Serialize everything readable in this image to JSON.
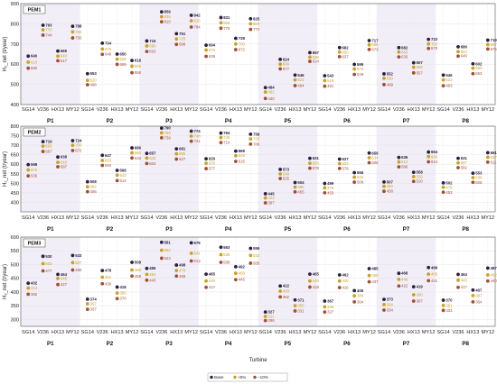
{
  "colors": {
    "base": "#2b2140",
    "plus5": "#c9a227",
    "minus10": "#a0503a",
    "band": "#f2eef8",
    "grid": "#e4e4e4"
  },
  "xlabel": "Turbine",
  "turbines": [
    "SG14",
    "V236",
    "HX13",
    "MY12"
  ],
  "sites": [
    "P1",
    "P2",
    "P3",
    "P4",
    "P5",
    "P6",
    "P7",
    "P8"
  ],
  "legend": [
    "Base",
    "+5%",
    "−10%"
  ],
  "chart_data": [
    {
      "type": "scatter",
      "title": "PEM1",
      "ylabel": "H₂_net (t/year)",
      "ylim": [
        400,
        900
      ],
      "yticks": [
        400,
        500,
        600,
        700,
        800,
        900
      ],
      "series_order": [
        "Base",
        "+5%",
        "−10%"
      ],
      "data": {
        "P1": [
          [
            640,
            610,
            580
          ],
          [
            793,
            770,
            744
          ],
          [
            665,
            640,
            617
          ],
          [
            788,
            760,
            730
          ]
        ],
        "P2": [
          [
            553,
            520,
            498
          ],
          [
            704,
            675,
            649
          ],
          [
            650,
            625,
            599
          ],
          [
            618,
            590,
            558
          ]
        ],
        "P3": [
          [
            715,
            690,
            663
          ],
          [
            859,
            835,
            810
          ],
          [
            751,
            725,
            698
          ],
          [
            842,
            815,
            784
          ]
        ],
        "P4": [
          [
            694,
            670,
            639
          ],
          [
            831,
            805,
            778
          ],
          [
            728,
            700,
            672
          ],
          [
            825,
            800,
            772
          ]
        ],
        "P5": [
          [
            484,
            462,
            430
          ],
          [
            624,
            600,
            577
          ],
          [
            546,
            522,
            494
          ],
          [
            657,
            635,
            614
          ]
        ],
        "P6": [
          [
            543,
            519,
            491
          ],
          [
            682,
            660,
            637
          ],
          [
            599,
            576,
            549
          ],
          [
            717,
            696,
            673
          ]
        ],
        "P7": [
          [
            552,
            530,
            499
          ],
          [
            682,
            660,
            636
          ],
          [
            607,
            585,
            557
          ],
          [
            723,
            700,
            678
          ]
        ],
        "P8": [
          [
            546,
            522,
            493
          ],
          [
            686,
            662,
            640
          ],
          [
            602,
            580,
            553
          ],
          [
            719,
            697,
            675
          ]
        ]
      }
    },
    {
      "type": "scatter",
      "title": "PEM2",
      "ylabel": "H₂_net (t/year)",
      "ylim": [
        350,
        800
      ],
      "yticks": [
        400,
        450,
        500,
        550,
        600,
        650,
        700,
        750,
        800
      ],
      "series_order": [
        "Base",
        "+5%",
        "−10%"
      ],
      "data": {
        "P1": [
          [
            598,
            570,
            539
          ],
          [
            719,
            695,
            667
          ],
          [
            638,
            610,
            587
          ],
          [
            724,
            700,
            672
          ]
        ],
        "P2": [
          [
            508,
            482,
            456
          ],
          [
            647,
            620,
            594
          ],
          [
            568,
            543,
            514
          ],
          [
            686,
            660,
            633
          ]
        ],
        "P3": [
          [
            657,
            633,
            604
          ],
          [
            790,
            765,
            739
          ],
          [
            681,
            655,
            627
          ],
          [
            774,
            748,
            721
          ]
        ],
        "P4": [
          [
            629,
            605,
            577
          ],
          [
            764,
            740,
            714
          ],
          [
            669,
            645,
            615
          ],
          [
            758,
            733,
            706
          ]
        ],
        "P5": [
          [
            445,
            423,
            397
          ],
          [
            573,
            549,
            525
          ],
          [
            504,
            480,
            455
          ],
          [
            631,
            605,
            579
          ]
        ],
        "P6": [
          [
            499,
            476,
            450
          ],
          [
            627,
            603,
            578
          ],
          [
            556,
            532,
            506
          ],
          [
            659,
            634,
            608
          ]
        ],
        "P7": [
          [
            507,
            484,
            458
          ],
          [
            636,
            612,
            586
          ],
          [
            558,
            535,
            510
          ],
          [
            664,
            640,
            613
          ]
        ],
        "P8": [
          [
            502,
            479,
            453
          ],
          [
            631,
            607,
            582
          ],
          [
            553,
            530,
            505
          ],
          [
            661,
            637,
            611
          ]
        ]
      }
    },
    {
      "type": "scatter",
      "title": "PEM3",
      "ylabel": "H₂_net (t/year)",
      "ylim": [
        275,
        600
      ],
      "yticks": [
        300,
        350,
        400,
        450,
        500,
        550,
        600
      ],
      "series_order": [
        "Base",
        "+5%",
        "−10%"
      ],
      "data": {
        "P1": [
          [
            432,
            414,
            392
          ],
          [
            530,
            503,
            477
          ],
          [
            464,
            449,
            427
          ],
          [
            533,
            507,
            480
          ]
        ],
        "P2": [
          [
            374,
            357,
            337
          ],
          [
            478,
            454,
            430
          ],
          [
            418,
            396,
            376
          ],
          [
            508,
            480,
            458
          ]
        ],
        "P3": [
          [
            486,
            464,
            443
          ],
          [
            581,
            552,
            523
          ],
          [
            498,
            478,
            458
          ],
          [
            579,
            541,
            513
          ]
        ],
        "P4": [
          [
            465,
            440,
            417
          ],
          [
            563,
            536,
            508
          ],
          [
            492,
            468,
            445
          ],
          [
            559,
            533,
            505
          ]
        ],
        "P5": [
          [
            327,
            311,
            296
          ],
          [
            422,
            403,
            382
          ],
          [
            371,
            350,
            331
          ],
          [
            465,
            440,
            418
          ]
        ],
        "P6": [
          [
            367,
            346,
            327
          ],
          [
            462,
            440,
            416
          ],
          [
            405,
            386,
            364
          ],
          [
            485,
            460,
            437
          ]
        ],
        "P7": [
          [
            373,
            354,
            334
          ],
          [
            468,
            446,
            422
          ],
          [
            419,
            390,
            367
          ],
          [
            489,
            465,
            441
          ]
        ],
        "P8": [
          [
            370,
            351,
            333
          ],
          [
            464,
            443,
            417
          ],
          [
            407,
            387,
            364
          ],
          [
            487,
            462,
            440
          ]
        ]
      }
    }
  ]
}
